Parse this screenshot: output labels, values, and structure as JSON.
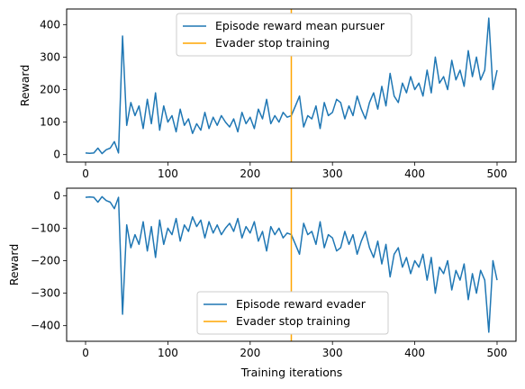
{
  "chart_data": [
    {
      "type": "line",
      "title": "",
      "xlabel": "",
      "ylabel": "Reward",
      "xlim": [
        -23,
        523
      ],
      "ylim": [
        -23,
        448
      ],
      "xticks": [
        0,
        100,
        200,
        300,
        400,
        500
      ],
      "yticks": [
        0,
        100,
        200,
        300,
        400
      ],
      "xtick_labels": [
        "0",
        "100",
        "200",
        "300",
        "400",
        "500"
      ],
      "ytick_labels": [
        "0",
        "100",
        "200",
        "300",
        "400"
      ],
      "grid": false,
      "legend_position": "top-center",
      "vline": {
        "x": 250,
        "name": "Evader stop training",
        "color": "#ffa500"
      },
      "series": [
        {
          "name": "Episode reward mean pursuer",
          "color": "#1f77b4",
          "x_start": 0,
          "x_step": 5,
          "values": [
            5,
            4,
            5,
            20,
            3,
            15,
            20,
            40,
            5,
            365,
            90,
            160,
            120,
            150,
            80,
            170,
            95,
            190,
            75,
            150,
            100,
            120,
            70,
            140,
            90,
            110,
            65,
            95,
            75,
            130,
            80,
            115,
            90,
            120,
            100,
            85,
            110,
            70,
            130,
            95,
            115,
            80,
            140,
            110,
            170,
            95,
            120,
            100,
            130,
            115,
            120,
            150,
            180,
            85,
            120,
            110,
            150,
            80,
            160,
            120,
            130,
            170,
            160,
            110,
            150,
            120,
            180,
            140,
            110,
            160,
            190,
            140,
            210,
            150,
            250,
            180,
            160,
            220,
            190,
            240,
            200,
            220,
            180,
            260,
            190,
            300,
            220,
            240,
            200,
            290,
            230,
            260,
            210,
            320,
            240,
            300,
            230,
            260,
            420,
            200,
            260
          ]
        }
      ]
    },
    {
      "type": "line",
      "title": "",
      "xlabel": "Training iterations",
      "ylabel": "Reward",
      "xlim": [
        -23,
        523
      ],
      "ylim": [
        -448,
        23
      ],
      "xticks": [
        0,
        100,
        200,
        300,
        400,
        500
      ],
      "yticks": [
        0,
        -100,
        -200,
        -300,
        -400
      ],
      "xtick_labels": [
        "0",
        "100",
        "200",
        "300",
        "400",
        "500"
      ],
      "ytick_labels": [
        "0",
        "−100",
        "−200",
        "−300",
        "−400"
      ],
      "grid": false,
      "legend_position": "bottom-center",
      "vline": {
        "x": 250,
        "name": "Evader stop training",
        "color": "#ffa500"
      },
      "series": [
        {
          "name": "Episode reward evader",
          "color": "#1f77b4",
          "x_start": 0,
          "x_step": 5,
          "values": [
            -5,
            -4,
            -5,
            -20,
            -3,
            -15,
            -20,
            -40,
            -5,
            -365,
            -90,
            -160,
            -120,
            -150,
            -80,
            -170,
            -95,
            -190,
            -75,
            -150,
            -100,
            -120,
            -70,
            -140,
            -90,
            -110,
            -65,
            -95,
            -75,
            -130,
            -80,
            -115,
            -90,
            -120,
            -100,
            -85,
            -110,
            -70,
            -130,
            -95,
            -115,
            -80,
            -140,
            -110,
            -170,
            -95,
            -120,
            -100,
            -130,
            -115,
            -120,
            -150,
            -180,
            -85,
            -120,
            -110,
            -150,
            -80,
            -160,
            -120,
            -130,
            -170,
            -160,
            -110,
            -150,
            -120,
            -180,
            -140,
            -110,
            -160,
            -190,
            -140,
            -210,
            -150,
            -250,
            -180,
            -160,
            -220,
            -190,
            -240,
            -200,
            -220,
            -180,
            -260,
            -190,
            -300,
            -220,
            -240,
            -200,
            -290,
            -230,
            -260,
            -210,
            -320,
            -240,
            -300,
            -230,
            -260,
            -420,
            -200,
            -260
          ]
        }
      ]
    }
  ]
}
